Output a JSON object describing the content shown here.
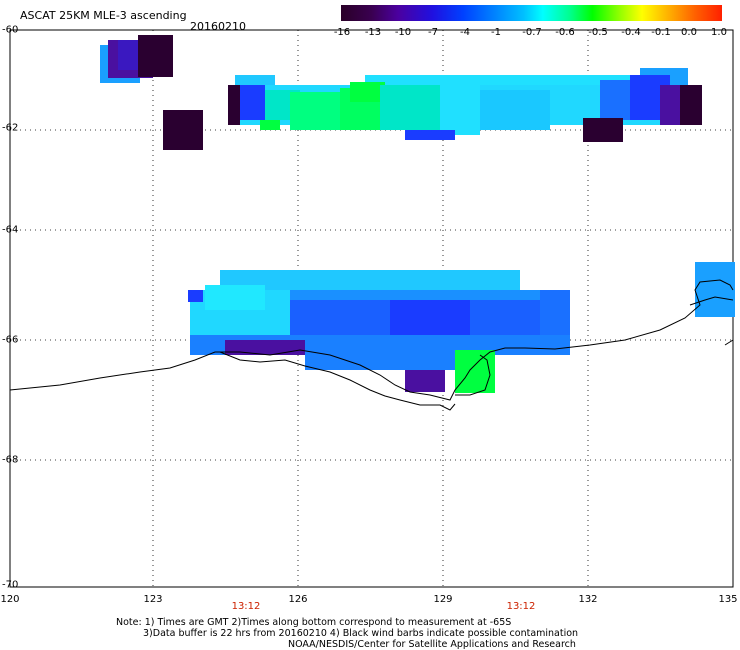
{
  "title": "ASCAT 25KM MLE-3 ascending",
  "date": "20160210",
  "colorbar": {
    "labels": [
      "-16",
      "-13",
      "-10",
      "-7",
      "-4",
      "-1",
      "-0.7",
      "-0.6",
      "-0.5",
      "-0.4",
      "-0.1",
      "0.0",
      "1.0"
    ]
  },
  "axes": {
    "y_labels": [
      "-60",
      "-62",
      "-64",
      "-66",
      "-68",
      "-70"
    ],
    "x_labels": [
      "120",
      "123",
      "126",
      "129",
      "132",
      "135"
    ]
  },
  "times": [
    "13:12",
    "13:12"
  ],
  "notes": {
    "line1": "Note: 1) Times are GMT 2)Times along bottom correspond to measurement at -65S",
    "line2": "3)Data buffer is 22 hrs from 20160210 4) Black wind barbs indicate possible contamination",
    "line3": "NOAA/NESDIS/Center for Satellite Applications and Research"
  },
  "colors": {
    "deep_purple": "#2a0030",
    "purple": "#4a10a0",
    "blue": "#1a3cff",
    "light_blue": "#1aa0ff",
    "cyan": "#20e0ff",
    "teal": "#00e6c8",
    "green": "#00ff40"
  }
}
